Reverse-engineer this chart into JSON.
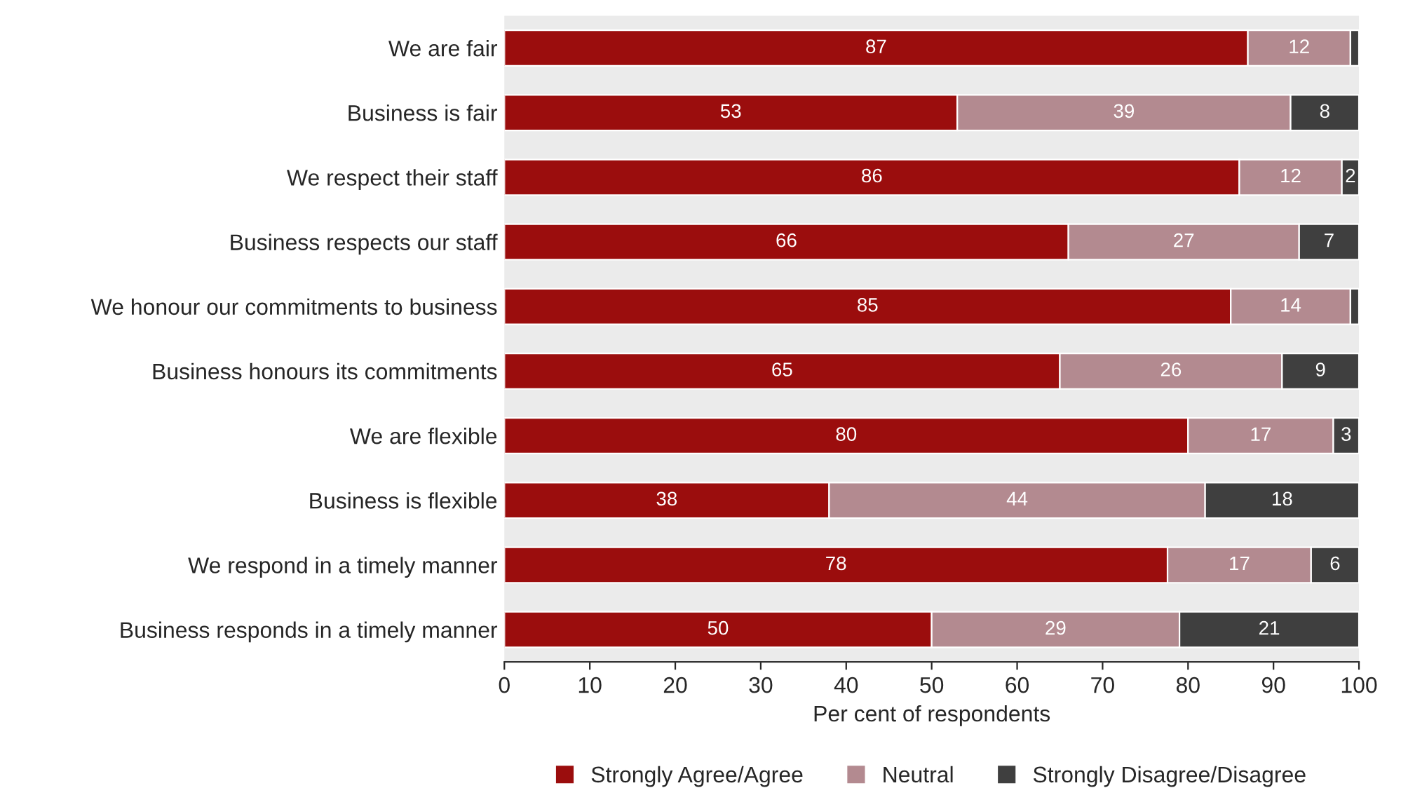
{
  "chart_data": {
    "type": "bar",
    "orientation": "horizontal",
    "stacked": true,
    "categories": [
      "We are fair",
      "Business is fair",
      "We respect their staff",
      "Business respects our staff",
      "We honour our commitments to business",
      "Business honours its commitments",
      "We are flexible",
      "Business is flexible",
      "We respond in a timely manner",
      "Business responds in a timely manner"
    ],
    "series": [
      {
        "name": "Strongly Agree/Agree",
        "color": "#9b0d0d",
        "values": [
          87,
          53,
          86,
          66,
          85,
          65,
          80,
          38,
          77.6,
          50
        ],
        "value_labels": [
          "87",
          "53",
          "86",
          "66",
          "85",
          "65",
          "80",
          "38",
          "78",
          "50"
        ]
      },
      {
        "name": "Neutral",
        "color": "#b38a90",
        "values": [
          12,
          39,
          12,
          27,
          14,
          26,
          17,
          44,
          16.8,
          29
        ],
        "value_labels": [
          "12",
          "39",
          "12",
          "27",
          "14",
          "26",
          "17",
          "44",
          "17",
          "29"
        ]
      },
      {
        "name": "Strongly Disagree/Disagree",
        "color": "#3f3f3f",
        "values": [
          1,
          8,
          2,
          7,
          1,
          9,
          3,
          18,
          5.6,
          21
        ],
        "value_labels": [
          null,
          "8",
          "2",
          "7",
          null,
          "9",
          "3",
          "18",
          "6",
          "21"
        ]
      }
    ],
    "xlim": [
      0,
      100
    ],
    "xticks": [
      0,
      10,
      20,
      30,
      40,
      50,
      60,
      70,
      80,
      90,
      100
    ],
    "xlabel": "Per cent of respondents",
    "legend": "bottom",
    "grid": false
  }
}
